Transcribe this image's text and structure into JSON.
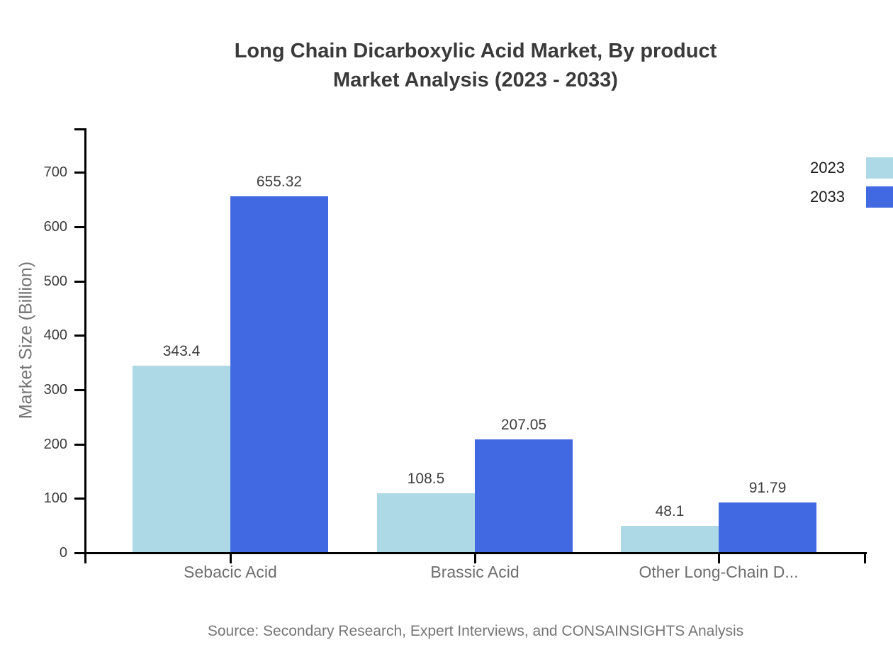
{
  "chart": {
    "title_line1": "Long Chain Dicarboxylic Acid Market, By product",
    "title_line2": "Market Analysis (2023 - 2033)",
    "source": "Source: Secondary Research, Expert Interviews, and CONSAINSIGHTS Analysis"
  },
  "chart_data": {
    "type": "bar",
    "title": "Long Chain Dicarboxylic Acid Market, By product Market Analysis (2023 - 2033)",
    "categories": [
      "Sebacic Acid",
      "Brassic Acid",
      "Other Long-Chain D..."
    ],
    "series": [
      {
        "name": "2023",
        "color": "#add8e6",
        "values": [
          343.4,
          108.5,
          48.1
        ],
        "labels": [
          "343.4",
          "108.5",
          "48.1"
        ]
      },
      {
        "name": "2033",
        "color": "#4169e1",
        "values": [
          655.32,
          207.05,
          91.79
        ],
        "labels": [
          "655.32",
          "207.05",
          "91.79"
        ]
      }
    ],
    "xlabel": "",
    "ylabel": "Market Size (Billion)",
    "yticks": [
      0,
      100,
      200,
      300,
      400,
      500,
      600,
      700
    ],
    "ylim": [
      0,
      780
    ],
    "grid": false,
    "legend_position": "top-right",
    "axis_color": "#000000"
  }
}
